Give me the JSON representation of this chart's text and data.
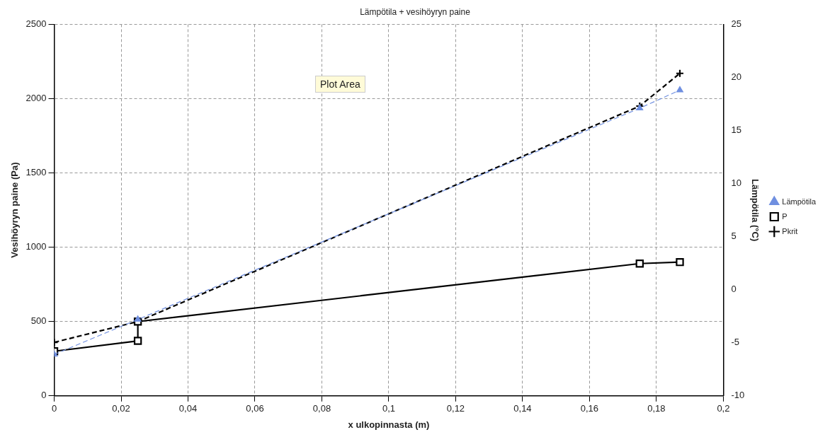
{
  "chart_data": {
    "type": "line",
    "title": "Lämpötila + vesihöyryn paine",
    "xlabel": "x ulkopinnasta (m)",
    "ylabel": "Vesihöyryn paine (Pa)",
    "y2label": "Lämpötila (°C)",
    "xlim": [
      0,
      0.2
    ],
    "xticks": [
      0,
      {
        "value": 0.02,
        "label": "0,02"
      },
      {
        "value": 0.04,
        "label": "0,04"
      },
      {
        "value": 0.06,
        "label": "0,06"
      },
      {
        "value": 0.08,
        "label": "0,08"
      },
      {
        "value": 0.1,
        "label": "0,1"
      },
      {
        "value": 0.12,
        "label": "0,12"
      },
      {
        "value": 0.14,
        "label": "0,14"
      },
      {
        "value": 0.16,
        "label": "0,16"
      },
      {
        "value": 0.18,
        "label": "0,18"
      },
      {
        "value": 0.2,
        "label": "0,2"
      }
    ],
    "ylim": [
      0,
      2500
    ],
    "yticks": [
      0,
      500,
      1000,
      1500,
      2000,
      2500
    ],
    "y2lim": [
      -10,
      25
    ],
    "y2ticks": [
      -10,
      -5,
      0,
      5,
      10,
      15,
      20,
      25
    ],
    "grid": true,
    "legend": "right",
    "annotations": [
      "Plot Area"
    ],
    "series": [
      {
        "name": "P",
        "color": "#000000",
        "marker": "square",
        "line_style": "solid",
        "x": [
          0,
          0.025,
          0.025,
          0.175,
          0.187
        ],
        "values": [
          300,
          370,
          500,
          890,
          900
        ]
      },
      {
        "name": "Pkrit",
        "color": "#000000",
        "marker": "cross",
        "line_style": "dashed",
        "x": [
          0,
          0.025,
          0.175,
          0.187
        ],
        "values": [
          360,
          500,
          1950,
          2170
        ]
      },
      {
        "name": "Lämpötila",
        "color": "#6f8fe0",
        "marker": "triangle",
        "line_style": "dashed",
        "axis": "y2",
        "x": [
          0,
          0.025,
          0.175,
          0.187
        ],
        "values": [
          -6.1,
          -2.8,
          17.1,
          18.8
        ]
      }
    ]
  }
}
